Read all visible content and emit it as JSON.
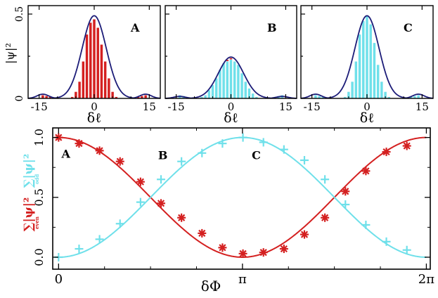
{
  "colors": {
    "red": "#d42020",
    "cyan": "#6fe0ea",
    "navy": "#1c1c78",
    "axis": "#000000"
  },
  "chart_data": [
    {
      "type": "bar",
      "panel_label": "A",
      "xlabel": "δℓ",
      "ylabel": "|ψ|²",
      "xlim": [
        -18,
        18
      ],
      "ylim": [
        0,
        0.55
      ],
      "xticks": [
        "-15",
        "0",
        "15"
      ],
      "yticks": [
        "0",
        "0.5"
      ],
      "x": [
        -16,
        -15,
        -14,
        -13,
        -12,
        -11,
        -10,
        -9,
        -8,
        -7,
        -6,
        -5,
        -4,
        -3,
        -2,
        -1,
        0,
        1,
        2,
        3,
        4,
        5,
        6,
        7,
        8,
        9,
        10,
        11,
        12,
        13,
        14,
        15,
        16
      ],
      "series": [
        {
          "color": "red",
          "values": [
            0,
            0,
            0.02,
            0.015,
            0.01,
            0,
            0,
            0,
            0,
            0,
            0.01,
            0.04,
            0.1,
            0.22,
            0.38,
            0.45,
            0.47,
            0.42,
            0.32,
            0.22,
            0.12,
            0.04,
            0.01,
            0,
            0,
            0,
            0,
            0,
            0.01,
            0.015,
            0.02,
            0,
            0
          ]
        },
        {
          "color": "cyan",
          "values": [
            0,
            0,
            0,
            0,
            0,
            0,
            0,
            0,
            0,
            0,
            0,
            0,
            0,
            0,
            0,
            0,
            0,
            0,
            0,
            0,
            0,
            0,
            0,
            0,
            0,
            0,
            0,
            0,
            0,
            0,
            0,
            0,
            0
          ]
        }
      ],
      "envelope": {
        "peak": 0.49,
        "center": 0,
        "width": 3.6,
        "sidelobe": 0.025
      }
    },
    {
      "type": "bar",
      "panel_label": "B",
      "xlabel": "δℓ",
      "xlim": [
        -18,
        18
      ],
      "ylim": [
        0,
        0.55
      ],
      "xticks": [
        "-15",
        "0",
        "15"
      ],
      "x": [
        -16,
        -15,
        -14,
        -13,
        -12,
        -11,
        -10,
        -9,
        -8,
        -7,
        -6,
        -5,
        -4,
        -3,
        -2,
        -1,
        0,
        1,
        2,
        3,
        4,
        5,
        6,
        7,
        8,
        9,
        10,
        11,
        12,
        13,
        14,
        15,
        16
      ],
      "series": [
        {
          "color": "red",
          "values": [
            0,
            0,
            0,
            0,
            0,
            0,
            0,
            0,
            0,
            0.01,
            0.03,
            0.06,
            0.1,
            0.16,
            0.2,
            0.23,
            0.24,
            0.22,
            0.18,
            0.13,
            0.08,
            0.05,
            0.02,
            0.01,
            0,
            0,
            0,
            0,
            0,
            0,
            0,
            0,
            0
          ]
        },
        {
          "color": "cyan",
          "values": [
            0,
            0,
            0.02,
            0.015,
            0.01,
            0.005,
            0,
            0,
            0.01,
            0.02,
            0.05,
            0.08,
            0.12,
            0.17,
            0.21,
            0.22,
            0.23,
            0.22,
            0.2,
            0.15,
            0.1,
            0.06,
            0.03,
            0.01,
            0,
            0,
            0,
            0.005,
            0.01,
            0.015,
            0.02,
            0,
            0
          ]
        }
      ],
      "envelope": {
        "peak": 0.245,
        "center": 0,
        "width": 3.8,
        "sidelobe": 0.012
      }
    },
    {
      "type": "bar",
      "panel_label": "C",
      "xlabel": "δℓ",
      "xlim": [
        -18,
        18
      ],
      "ylim": [
        0,
        0.55
      ],
      "xticks": [
        "-15",
        "0",
        "15"
      ],
      "x": [
        -16,
        -15,
        -14,
        -13,
        -12,
        -11,
        -10,
        -9,
        -8,
        -7,
        -6,
        -5,
        -4,
        -3,
        -2,
        -1,
        0,
        1,
        2,
        3,
        4,
        5,
        6,
        7,
        8,
        9,
        10,
        11,
        12,
        13,
        14,
        15,
        16
      ],
      "series": [
        {
          "color": "red",
          "values": [
            0,
            0,
            0,
            0,
            0,
            0,
            0,
            0,
            0,
            0,
            0,
            0,
            0,
            0,
            0.01,
            0.02,
            0.02,
            0.02,
            0.01,
            0,
            0,
            0,
            0,
            0,
            0,
            0,
            0,
            0,
            0,
            0,
            0,
            0,
            0
          ]
        },
        {
          "color": "cyan",
          "values": [
            0,
            0,
            0.02,
            0.015,
            0.01,
            0,
            0,
            0,
            0,
            0,
            0.01,
            0.04,
            0.1,
            0.22,
            0.38,
            0.46,
            0.49,
            0.44,
            0.33,
            0.2,
            0.1,
            0.04,
            0.01,
            0,
            0,
            0,
            0,
            0,
            0.01,
            0.015,
            0.02,
            0,
            0
          ]
        }
      ],
      "envelope": {
        "peak": 0.49,
        "center": 0,
        "width": 3.6,
        "sidelobe": 0.025
      }
    },
    {
      "type": "line",
      "xlabel": "δΦ",
      "ylabel_red": "∑|ψ|²",
      "ylabel_red_sub": "even",
      "ylabel_cyan": "∑|ψ|²",
      "ylabel_cyan_sub": "odd",
      "xlim": [
        -0.1,
        6.35
      ],
      "ylim": [
        -0.1,
        1.08
      ],
      "xticks": [
        {
          "value": 0,
          "label": "0"
        },
        {
          "value": 3.14159,
          "label": "π"
        },
        {
          "value": 6.28318,
          "label": "2π"
        }
      ],
      "yticks": [
        {
          "value": 0,
          "label": "0.0"
        },
        {
          "value": 0.5,
          "label": "0.5"
        },
        {
          "value": 1,
          "label": "1.0"
        }
      ],
      "annotations": [
        {
          "label": "A",
          "x": 0.05,
          "y": 0.83
        },
        {
          "label": "B",
          "x": 1.7,
          "y": 0.82
        },
        {
          "label": "C",
          "x": 3.3,
          "y": 0.82
        }
      ],
      "series": [
        {
          "color": "red",
          "marker": "asterisk",
          "x": [
            0,
            0.35,
            0.7,
            1.05,
            1.4,
            1.75,
            2.1,
            2.45,
            2.8,
            3.15,
            3.5,
            3.85,
            4.2,
            4.55,
            4.9,
            5.25,
            5.6,
            5.95
          ],
          "y": [
            1.0,
            0.95,
            0.89,
            0.8,
            0.63,
            0.45,
            0.33,
            0.2,
            0.08,
            0.03,
            0.04,
            0.07,
            0.19,
            0.33,
            0.55,
            0.72,
            0.88,
            0.93
          ]
        },
        {
          "color": "cyan",
          "marker": "plus",
          "x": [
            0,
            0.35,
            0.7,
            1.05,
            1.4,
            1.75,
            2.1,
            2.45,
            2.8,
            3.15,
            3.5,
            3.85,
            4.2,
            4.55,
            4.9,
            5.25,
            5.6,
            5.95
          ],
          "y": [
            0.0,
            0.07,
            0.15,
            0.28,
            0.46,
            0.65,
            0.8,
            0.87,
            0.95,
            1.0,
            0.96,
            0.9,
            0.81,
            0.65,
            0.44,
            0.27,
            0.13,
            0.06
          ]
        }
      ],
      "curves": [
        {
          "color": "red",
          "function": "cos2_half"
        },
        {
          "color": "cyan",
          "function": "sin2_half"
        }
      ]
    }
  ]
}
